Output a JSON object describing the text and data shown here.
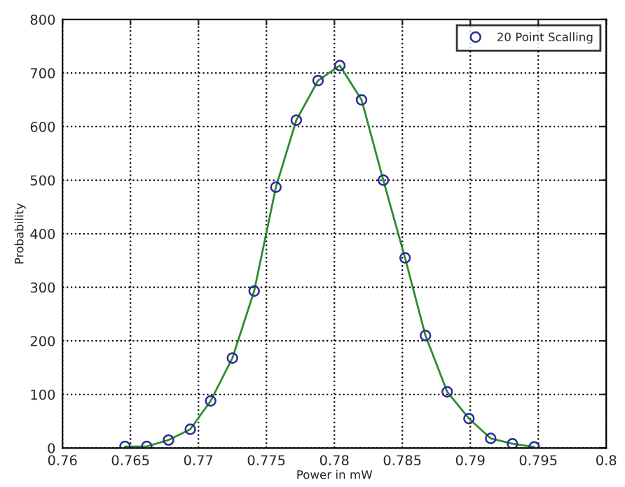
{
  "chart_data": {
    "type": "scatter",
    "xlabel": "Power in mW",
    "ylabel": "Probability",
    "x": [
      0.7646,
      0.7662,
      0.7678,
      0.7694,
      0.7709,
      0.7725,
      0.7741,
      0.7757,
      0.7772,
      0.7788,
      0.7804,
      0.782,
      0.7836,
      0.7852,
      0.7867,
      0.7883,
      0.7899,
      0.7915,
      0.7931,
      0.7947
    ],
    "series": [
      {
        "type": "line",
        "color": "#2e8b2e",
        "marker": "none",
        "line_style": "solid",
        "values": [
          3,
          3,
          15,
          35,
          88,
          168,
          293,
          487,
          612,
          686,
          714,
          650,
          500,
          355,
          210,
          105,
          55,
          18,
          8,
          2
        ]
      },
      {
        "name": "20 Point Scalling",
        "color": "#2b2b9a",
        "marker": "circle",
        "values": [
          3,
          3,
          15,
          35,
          88,
          168,
          293,
          487,
          612,
          686,
          714,
          650,
          500,
          355,
          210,
          105,
          55,
          18,
          8,
          2
        ]
      }
    ],
    "xlim": [
      0.76,
      0.8
    ],
    "xticks": [
      0.76,
      0.765,
      0.77,
      0.775,
      0.78,
      0.785,
      0.79,
      0.795,
      0.8
    ],
    "ylim": [
      0,
      800
    ],
    "yticks": [
      0,
      100,
      200,
      300,
      400,
      500,
      600,
      700,
      800
    ],
    "grid": true,
    "legend": "top right"
  }
}
